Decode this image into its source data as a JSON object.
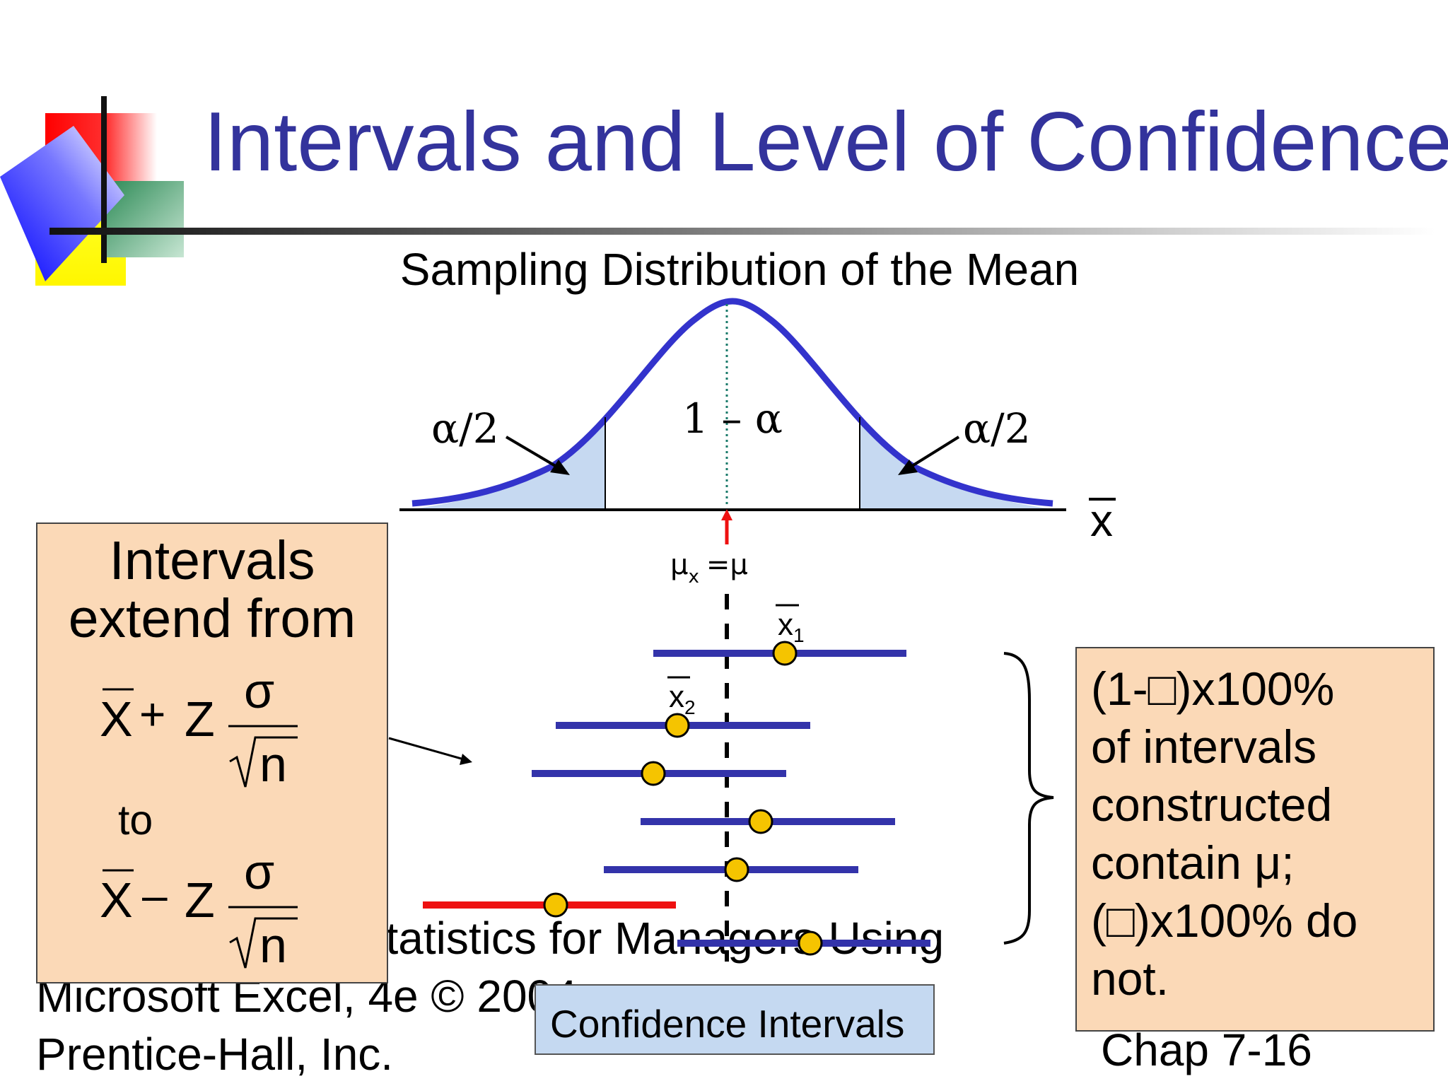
{
  "slide": {
    "title": "Intervals and Level of Confidence",
    "footer": "Basic Business Statistics for Managers Using\nMicrosoft Excel, 4e © 2004\nPrentice-Hall, Inc.",
    "page": "Chap 7-16"
  },
  "diagram": {
    "heading": "Sampling Distribution of the Mean",
    "tail_left": "α/2",
    "tail_right": "α/2",
    "center_area": "1 – α",
    "axis_symbol": "x",
    "mean_mu": "μ",
    "mean_sub": "x",
    "mean_eq": "=μ",
    "xbar1_sym": "x",
    "xbar1_sub": "1",
    "xbar2_sym": "x",
    "xbar2_sub": "2",
    "intervals_caption": "Confidence Intervals",
    "interval_colors": {
      "contains": "#3333aa",
      "misses": "#ee1111",
      "point": "#f5c400"
    }
  },
  "left_box": {
    "line1": "Intervals",
    "line2": "extend from",
    "to": "to",
    "f_x": "X",
    "f_plus": "+",
    "f_minus": "–",
    "f_z": "Z",
    "f_sigma": "σ",
    "f_n": "n"
  },
  "right_box": {
    "text": "(1-□)x100%\nof intervals\nconstructed\ncontain μ;\n(□)x100% do\nnot."
  }
}
